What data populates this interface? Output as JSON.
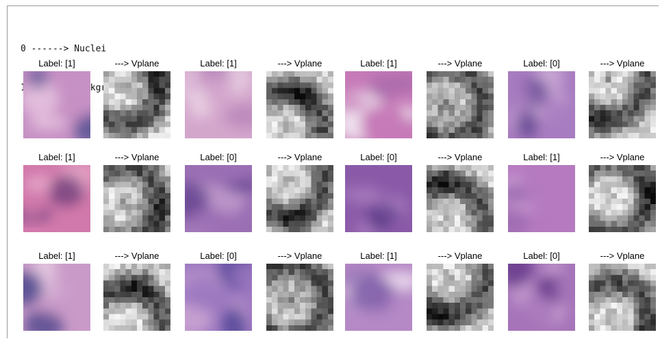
{
  "legend": [
    {
      "code": "0",
      "arrow": "------>",
      "name": "Nuclei"
    },
    {
      "code": "1",
      "arrow": "------>",
      "name": "Background"
    }
  ],
  "vplane_label": "---> Vplane",
  "rows": [
    [
      {
        "label": "Label: [1]",
        "tile": {
          "base": "#c690c4",
          "accent": "#e6c4df",
          "dark": "#4f4d8f"
        }
      },
      {
        "label": "Label: [1]",
        "tile": {
          "base": "#d3a6cc",
          "accent": "#e8cfe2",
          "dark": "#b580b7"
        }
      },
      {
        "label": "Label: [1]",
        "tile": {
          "base": "#c67ab8",
          "accent": "#f2eaf2",
          "dark": "#a86aab"
        }
      },
      {
        "label": "Label: [0]",
        "tile": {
          "base": "#a87cc0",
          "accent": "#c9a7d4",
          "dark": "#5b3f8c"
        }
      }
    ],
    [
      {
        "label": "Label: [1]",
        "tile": {
          "base": "#d179ac",
          "accent": "#e6a8c8",
          "dark": "#6a3a78"
        }
      },
      {
        "label": "Label: [0]",
        "tile": {
          "base": "#9b6fb4",
          "accent": "#c9a5d2",
          "dark": "#5b3c8b"
        }
      },
      {
        "label": "Label: [0]",
        "tile": {
          "base": "#8a5aa8",
          "accent": "#b487c6",
          "dark": "#5a3988"
        }
      },
      {
        "label": "Label: [1]",
        "tile": {
          "base": "#b57ac0",
          "accent": "#cfa1d4",
          "dark": "#9566ad"
        }
      }
    ],
    [
      {
        "label": "Label: [1]",
        "tile": {
          "base": "#c99ac8",
          "accent": "#e3c5df",
          "dark": "#3e3a85"
        }
      },
      {
        "label": "Label: [0]",
        "tile": {
          "base": "#9c78c0",
          "accent": "#c8a2d0",
          "dark": "#4f4396"
        }
      },
      {
        "label": "Label: [1]",
        "tile": {
          "base": "#b589c6",
          "accent": "#e6d3ea",
          "dark": "#7f5da8"
        }
      },
      {
        "label": "Label: [0]",
        "tile": {
          "base": "#a574b9",
          "accent": "#c89dd0",
          "dark": "#6d3f8f"
        }
      }
    ]
  ]
}
